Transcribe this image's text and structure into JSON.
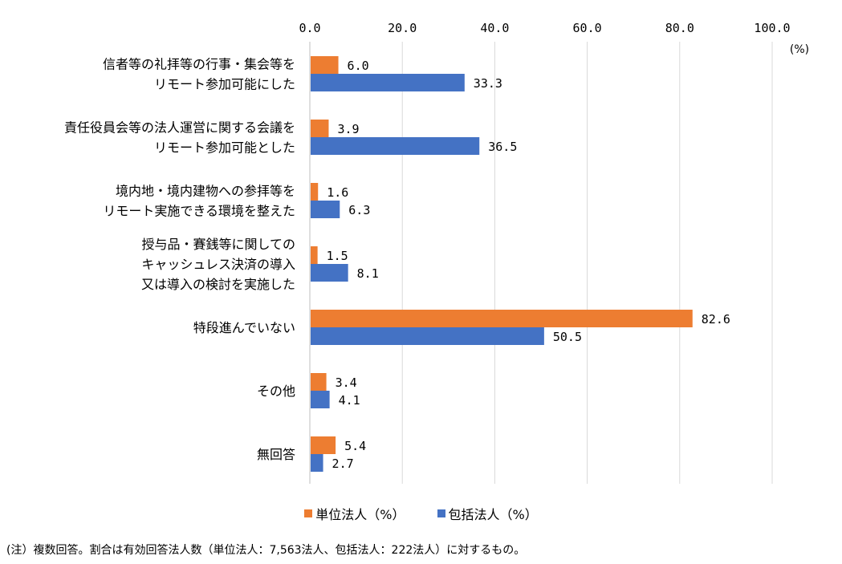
{
  "chart_data": {
    "type": "bar",
    "orientation": "horizontal",
    "unit_label": "(%)",
    "xlim": [
      0,
      100
    ],
    "ticks": [
      "0.0",
      "20.0",
      "40.0",
      "60.0",
      "80.0",
      "100.0"
    ],
    "categories": [
      [
        "信者等の礼拝等の行事・集会等を",
        "リモート参加可能にした"
      ],
      [
        "責任役員会等の法人運営に関する会議を",
        "リモート参加可能とした"
      ],
      [
        "境内地・境内建物への参拝等を",
        "リモート実施できる環境を整えた"
      ],
      [
        "授与品・賽銭等に関しての",
        "キャッシュレス決済の導入",
        "又は導入の検討を実施した"
      ],
      [
        "特段進んでいない"
      ],
      [
        "その他"
      ],
      [
        "無回答"
      ]
    ],
    "series": [
      {
        "name": "単位法人（%）",
        "color": "#ED7D31",
        "values": [
          6.0,
          3.9,
          1.6,
          1.5,
          82.6,
          3.4,
          5.4
        ],
        "labels": [
          "6.0",
          "3.9",
          "1.6",
          "1.5",
          "82.6",
          "3.4",
          "5.4"
        ]
      },
      {
        "name": "包括法人（%）",
        "color": "#4472C4",
        "values": [
          33.3,
          36.5,
          6.3,
          8.1,
          50.5,
          4.1,
          2.7
        ],
        "labels": [
          "33.3",
          "36.5",
          "6.3",
          "8.1",
          "50.5",
          "4.1",
          "2.7"
        ]
      }
    ],
    "grid": true,
    "legend_position": "bottom"
  },
  "legend": {
    "series1": "単位法人（%）",
    "series2": "包括法人（%）"
  },
  "note": "(注）複数回答。割合は有効回答法人数（単位法人：7,563法人、包括法人：222法人）に対するもの。"
}
